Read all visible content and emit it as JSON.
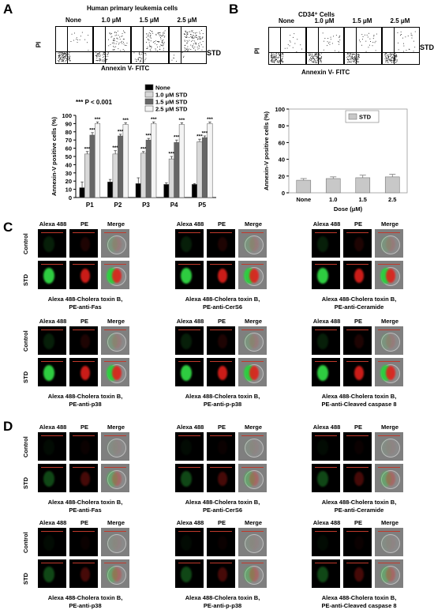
{
  "panels": {
    "A": "A",
    "B": "B",
    "C": "C",
    "D": "D"
  },
  "panelA": {
    "title": "Human primary leukemia cells",
    "flow_titles": [
      "None",
      "1.0 μM",
      "1.5 μM",
      "2.5 μM"
    ],
    "treatment_label": "STD",
    "y_axis": "PI",
    "x_axis": "Annexin V- FITC",
    "significance": "*** P < 0.001"
  },
  "panelB": {
    "title": "CD34⁺ Cells",
    "flow_titles": [
      "None",
      "1.0 μM",
      "1.5 μM",
      "2.5 μM"
    ],
    "treatment_label": "STD",
    "y_axis": "PI",
    "x_axis": "Annexin V- FITC"
  },
  "chart_data": [
    {
      "type": "bar",
      "categories": [
        "P1",
        "P2",
        "P3",
        "P4",
        "P5"
      ],
      "series": [
        {
          "name": "None",
          "values": [
            12,
            19,
            17,
            16,
            16
          ],
          "errors": [
            7,
            3,
            7,
            2,
            1
          ],
          "color": "#000000"
        },
        {
          "name": "1.0 μM STD",
          "values": [
            53,
            53,
            54,
            47,
            68
          ],
          "errors": [
            3,
            4,
            2,
            3,
            3
          ],
          "color": "#d8d8d8"
        },
        {
          "name": "1.5 μM STD",
          "values": [
            76,
            75,
            70,
            67,
            73
          ],
          "errors": [
            3,
            2,
            2,
            3,
            2
          ],
          "color": "#666666"
        },
        {
          "name": "2.5 μM STD",
          "values": [
            90,
            89,
            90,
            89,
            90
          ],
          "errors": [
            2,
            2,
            2,
            2,
            2
          ],
          "color": "#f4f4f4"
        }
      ],
      "stars": "***",
      "ylabel": "Annexin-V positive cells (%)",
      "xlabel": "",
      "ylim": [
        0,
        100
      ],
      "yticks": [
        0,
        10,
        20,
        30,
        40,
        50,
        60,
        70,
        80,
        90,
        100
      ],
      "legend": "top-right"
    },
    {
      "type": "bar",
      "categories": [
        "None",
        "1.0",
        "1.5",
        "2.5"
      ],
      "series": [
        {
          "name": "STD",
          "values": [
            15,
            17,
            18,
            19
          ],
          "errors": [
            2,
            2,
            3,
            3
          ],
          "color": "#c8c8c8"
        }
      ],
      "ylabel": "Annexin-V positive cells (%)",
      "xlabel": "Dose (μM)",
      "ylim": [
        0,
        100
      ],
      "yticks": [
        0,
        20,
        40,
        60,
        80,
        100
      ],
      "legend": "top-right"
    }
  ],
  "microscopy": {
    "col_headers": [
      "Alexa 488",
      "PE",
      "Merge"
    ],
    "row_labels": [
      "Control",
      "STD"
    ],
    "captions_C": [
      [
        "Alexa 488-Cholera toxin B,",
        "PE-anti-Fas"
      ],
      [
        "Alexa 488-Cholera toxin B,",
        "PE-anti-CerS6"
      ],
      [
        "Alexa 488-Cholera toxin B,",
        "PE-anti-Ceramide"
      ],
      [
        "Alexa 488-Cholera toxin B,",
        "PE-anti-p38"
      ],
      [
        "Alexa 488-Cholera toxin B,",
        "PE-anti-p-p38"
      ],
      [
        "Alexa 488-Cholera toxin B,",
        "PE-anti-Cleaved caspase 8"
      ]
    ],
    "captions_D": [
      [
        "Alexa 488-Cholera toxin B,",
        "PE-anti-Fas"
      ],
      [
        "Alexa 488-Cholera toxin B,",
        "PE-anti-CerS6"
      ],
      [
        "Alexa 488-Cholera toxin B,",
        "PE-anti-Ceramide"
      ],
      [
        "Alexa 488-Cholera toxin B,",
        "PE-anti-p38"
      ],
      [
        "Alexa 488-Cholera toxin B,",
        "PE-anti-p-p38"
      ],
      [
        "Alexa 488-Cholera toxin B,",
        "PE-anti-Cleaved caspase 8"
      ]
    ]
  }
}
